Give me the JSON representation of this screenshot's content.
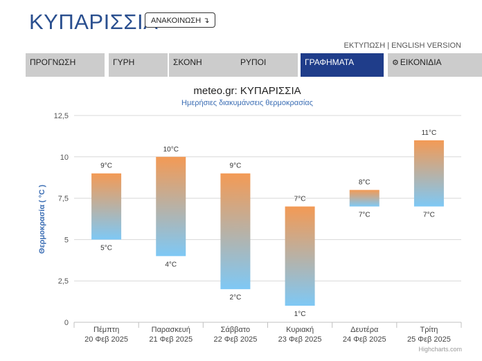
{
  "header": {
    "city_title": "ΚΥΠΑΡΙΣΣΙΑ",
    "announce_button": "ΑΝΑΚΟΙΝΩΣΗ",
    "announce_icon": "arrow-down-right-icon",
    "print_link": "ΕΚΤΥΠΩΣΗ",
    "separator": "|",
    "english_link": "ENGLISH VERSION"
  },
  "tabs": [
    {
      "label": "ΠΡΟΓΝΩΣΗ",
      "active": false
    },
    {
      "label": "ΓΥΡΗ",
      "active": false
    },
    {
      "label": "ΣΚΟΝΗ",
      "active": false
    },
    {
      "label": "ΡΥΠΟΙ",
      "active": false
    },
    {
      "label": "ΓΡΑΦΗΜΑΤΑ",
      "active": true
    },
    {
      "label": "ΕΙΚΟΝΙΔΙΑ",
      "active": false,
      "icon": "gear-icon"
    }
  ],
  "chart_data": {
    "type": "bar",
    "subtype": "columnrange",
    "title": "meteo.gr: ΚΥΠΑΡΙΣΣΙΑ",
    "subtitle": "Ημερήσιες διακυμάνσεις θερμοκρασίας",
    "ylabel": "Θερμοκρασία ( °C )",
    "ylim": [
      0,
      12.5
    ],
    "yticks": [
      "0",
      "2,5",
      "5",
      "7,5",
      "10",
      "12,5"
    ],
    "ytick_values": [
      0,
      2.5,
      5,
      7.5,
      10,
      12.5
    ],
    "categories": [
      {
        "day": "Πέμπτη",
        "date": "20 Φεβ 2025"
      },
      {
        "day": "Παρασκευή",
        "date": "21 Φεβ 2025"
      },
      {
        "day": "Σάββατο",
        "date": "22 Φεβ 2025"
      },
      {
        "day": "Κυριακή",
        "date": "23 Φεβ 2025"
      },
      {
        "day": "Δευτέρα",
        "date": "24 Φεβ 2025"
      },
      {
        "day": "Τρίτη",
        "date": "25 Φεβ 2025"
      }
    ],
    "low": [
      5,
      4,
      2,
      1,
      7,
      7
    ],
    "high": [
      9,
      10,
      9,
      7,
      8,
      11
    ],
    "low_labels": [
      "5°C",
      "4°C",
      "2°C",
      "1°C",
      "7°C",
      "7°C"
    ],
    "high_labels": [
      "9°C",
      "10°C",
      "9°C",
      "7°C",
      "8°C",
      "11°C"
    ],
    "grid": true,
    "legend": "none",
    "colors": {
      "warm": "#f39a55",
      "cool": "#7ec8f5",
      "grid": "#d8d8d8",
      "title": "#222222",
      "subtitle": "#3c6eb4",
      "axis_title": "#3c6eb4"
    },
    "credit": "Highcharts.com"
  }
}
